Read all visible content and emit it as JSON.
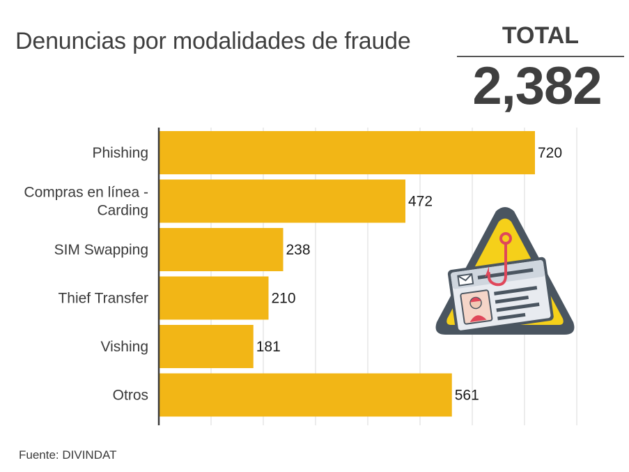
{
  "header": {
    "title": "Denuncias por modalidades de fraude",
    "total_label": "TOTAL",
    "total_value": "2,382"
  },
  "footer": {
    "source": "Fuente: DIVINDAT"
  },
  "illustration": {
    "icon": "phishing-id-card-warning-icon"
  },
  "colors": {
    "bar": "#F2B616",
    "grid": "#d9d9d9",
    "axis": "#3a3a3a",
    "warning_yellow": "#F5D01A",
    "warning_border": "#4a5560",
    "hook": "#e0475a"
  },
  "chart_data": {
    "type": "bar",
    "orientation": "horizontal",
    "title": "Denuncias por modalidades de fraude",
    "categories": [
      [
        "Phishing"
      ],
      [
        "Compras en línea -",
        "Carding"
      ],
      [
        "SIM Swapping"
      ],
      [
        "Thief Transfer"
      ],
      [
        "Vishing"
      ],
      [
        "Otros"
      ]
    ],
    "values": [
      720,
      472,
      238,
      210,
      181,
      561
    ],
    "xlim": [
      0,
      800
    ],
    "grid": true,
    "xlabel": "",
    "ylabel": ""
  }
}
